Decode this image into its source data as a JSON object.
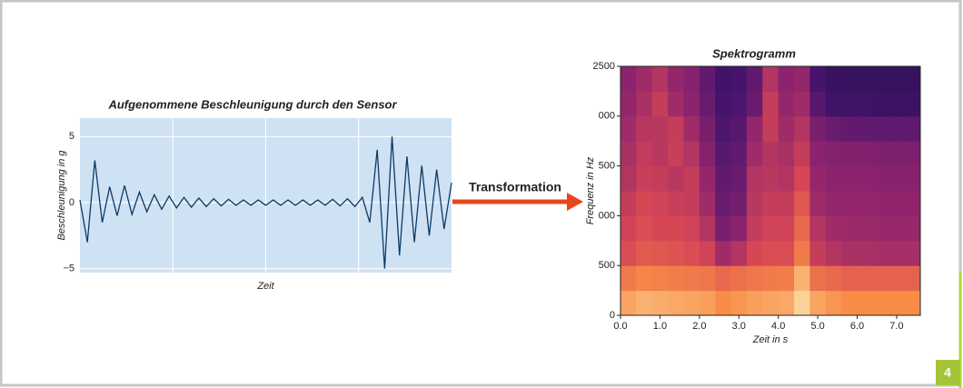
{
  "arrow_label": "Transformation",
  "figure_number": "4",
  "chart_data": [
    {
      "type": "line",
      "title": "Aufgenommene Beschleunigung durch den Sensor",
      "xlabel": "Zeit",
      "ylabel": "Beschleunigung in g",
      "x": [
        0,
        2,
        4,
        6,
        8,
        10,
        12,
        14,
        16,
        18,
        20,
        22,
        24,
        26,
        28,
        30,
        32,
        34,
        36,
        38,
        40,
        42,
        44,
        46,
        48,
        50,
        52,
        54,
        56,
        58,
        60,
        62,
        64,
        66,
        68,
        70,
        72,
        74,
        76,
        78,
        80,
        82,
        84,
        86,
        88,
        90,
        92,
        94,
        96,
        98,
        100
      ],
      "values": [
        0.2,
        -3.0,
        3.2,
        -1.5,
        1.2,
        -1.0,
        1.3,
        -0.9,
        0.8,
        -0.7,
        0.6,
        -0.5,
        0.5,
        -0.4,
        0.4,
        -0.35,
        0.35,
        -0.3,
        0.3,
        -0.25,
        0.25,
        -0.2,
        0.2,
        -0.2,
        0.2,
        -0.2,
        0.2,
        -0.2,
        0.2,
        -0.2,
        0.2,
        -0.2,
        0.2,
        -0.2,
        0.25,
        -0.25,
        0.3,
        -0.3,
        0.4,
        -1.5,
        4.0,
        -5.0,
        5.0,
        -4.0,
        3.5,
        -3.0,
        2.8,
        -2.5,
        2.5,
        -2.0,
        1.5
      ],
      "color": "#0d3a66",
      "background": "#cfe2f3",
      "xlim": [
        0,
        100
      ],
      "ylim": [
        -5.3,
        6.4
      ],
      "yticks": [
        {
          "value": -5,
          "label": "−5"
        },
        0,
        5
      ],
      "grid": true
    },
    {
      "type": "heatmap",
      "title": "Spektrogramm",
      "xlabel": "Zeit in s",
      "ylabel": "Frequenz in Hz",
      "colormap": "magma",
      "x": [
        0.2,
        0.6,
        1.0,
        1.4,
        1.8,
        2.2,
        2.6,
        3.0,
        3.4,
        3.8,
        4.2,
        4.6,
        5.0,
        5.4,
        5.8,
        6.2,
        6.6,
        7.0,
        7.4
      ],
      "y": [
        125,
        375,
        625,
        875,
        1125,
        1375,
        1625,
        1875,
        2125,
        2375
      ],
      "z": [
        [
          0.85,
          0.88,
          0.87,
          0.86,
          0.85,
          0.84,
          0.8,
          0.82,
          0.84,
          0.85,
          0.86,
          0.95,
          0.85,
          0.82,
          0.8,
          0.8,
          0.8,
          0.8,
          0.8
        ],
        [
          0.75,
          0.78,
          0.77,
          0.76,
          0.75,
          0.74,
          0.7,
          0.72,
          0.74,
          0.75,
          0.76,
          0.88,
          0.72,
          0.7,
          0.68,
          0.68,
          0.68,
          0.68,
          0.68
        ],
        [
          0.62,
          0.66,
          0.65,
          0.64,
          0.62,
          0.58,
          0.45,
          0.5,
          0.6,
          0.62,
          0.62,
          0.75,
          0.55,
          0.5,
          0.48,
          0.48,
          0.47,
          0.47,
          0.47
        ],
        [
          0.58,
          0.62,
          0.6,
          0.6,
          0.58,
          0.5,
          0.35,
          0.4,
          0.55,
          0.58,
          0.58,
          0.7,
          0.5,
          0.45,
          0.44,
          0.44,
          0.43,
          0.43,
          0.43
        ],
        [
          0.55,
          0.6,
          0.58,
          0.56,
          0.55,
          0.45,
          0.3,
          0.33,
          0.52,
          0.55,
          0.55,
          0.65,
          0.45,
          0.42,
          0.42,
          0.42,
          0.41,
          0.41,
          0.41
        ],
        [
          0.5,
          0.56,
          0.55,
          0.52,
          0.55,
          0.42,
          0.28,
          0.3,
          0.5,
          0.52,
          0.5,
          0.6,
          0.42,
          0.4,
          0.4,
          0.4,
          0.39,
          0.39,
          0.39
        ],
        [
          0.48,
          0.54,
          0.52,
          0.56,
          0.5,
          0.38,
          0.25,
          0.28,
          0.45,
          0.5,
          0.48,
          0.55,
          0.4,
          0.38,
          0.37,
          0.37,
          0.36,
          0.36,
          0.36
        ],
        [
          0.45,
          0.52,
          0.52,
          0.55,
          0.45,
          0.35,
          0.22,
          0.25,
          0.42,
          0.55,
          0.45,
          0.5,
          0.35,
          0.3,
          0.28,
          0.28,
          0.27,
          0.27,
          0.27
        ],
        [
          0.42,
          0.48,
          0.55,
          0.45,
          0.4,
          0.3,
          0.2,
          0.22,
          0.3,
          0.55,
          0.42,
          0.45,
          0.25,
          0.18,
          0.17,
          0.17,
          0.16,
          0.16,
          0.16
        ],
        [
          0.4,
          0.45,
          0.5,
          0.42,
          0.38,
          0.28,
          0.18,
          0.2,
          0.28,
          0.5,
          0.4,
          0.42,
          0.2,
          0.15,
          0.14,
          0.14,
          0.14,
          0.14,
          0.14
        ]
      ],
      "xlim": [
        0,
        7.6
      ],
      "ylim": [
        0,
        2500
      ],
      "xticks": [
        {
          "value": 0,
          "label": "0.0"
        },
        {
          "value": 1,
          "label": "1.0"
        },
        {
          "value": 2,
          "label": "2.0"
        },
        {
          "value": 3,
          "label": "3.0"
        },
        {
          "value": 4,
          "label": "4.0"
        },
        {
          "value": 5,
          "label": "5.0"
        },
        {
          "value": 6,
          "label": "6.0"
        },
        {
          "value": 7,
          "label": "7.0"
        }
      ],
      "yticks": [
        0,
        500,
        {
          "value": 1000,
          "label": "000"
        },
        {
          "value": 1500,
          "label": "500"
        },
        {
          "value": 2000,
          "label": "000"
        },
        2500
      ]
    }
  ]
}
